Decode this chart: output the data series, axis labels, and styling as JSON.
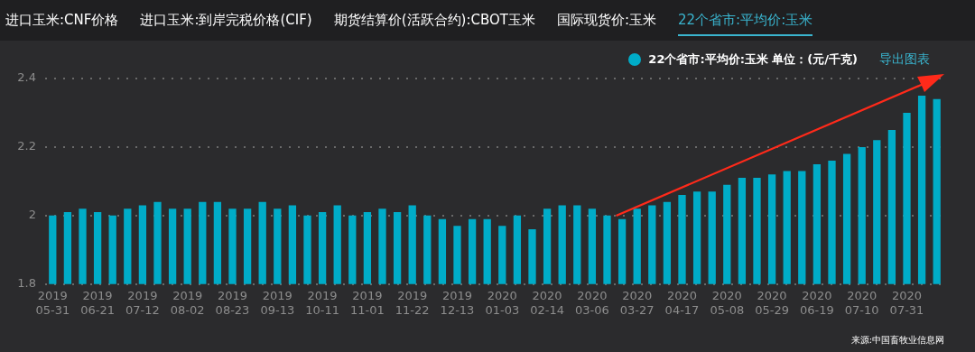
{
  "chart_data": {
    "type": "bar",
    "categories": [
      "2019 05-31",
      null,
      null,
      "2019 06-21",
      null,
      null,
      "2019 07-12",
      null,
      null,
      "2019 08-02",
      null,
      null,
      "2019 08-23",
      null,
      null,
      "2019 09-13",
      null,
      null,
      "2019 10-11",
      null,
      null,
      "2019 11-01",
      null,
      null,
      "2019 11-22",
      null,
      null,
      "2019 12-13",
      null,
      null,
      "2020 01-03",
      null,
      null,
      "2020 02-14",
      null,
      null,
      "2020 03-06",
      null,
      null,
      "2020 03-27",
      null,
      null,
      "2020 04-17",
      null,
      null,
      "2020 05-08",
      null,
      null,
      "2020 05-29",
      null,
      null,
      "2020 06-19",
      null,
      null,
      "2020 07-10",
      null,
      null,
      "2020 07-31",
      null,
      null
    ],
    "series": [
      {
        "name": "22个省市:平均价:玉米 单位：(元/千克)",
        "color": "#00acc8",
        "values": [
          2.0,
          2.01,
          2.02,
          2.01,
          2.0,
          2.02,
          2.03,
          2.04,
          2.02,
          2.02,
          2.04,
          2.04,
          2.02,
          2.02,
          2.04,
          2.02,
          2.03,
          2.0,
          2.01,
          2.03,
          2.0,
          2.01,
          2.02,
          2.01,
          2.03,
          2.0,
          1.99,
          1.97,
          1.99,
          1.99,
          1.97,
          2.0,
          1.96,
          2.02,
          2.03,
          2.03,
          2.02,
          2.0,
          1.99,
          2.02,
          2.03,
          2.04,
          2.06,
          2.07,
          2.07,
          2.09,
          2.11,
          2.11,
          2.12,
          2.13,
          2.13,
          2.15,
          2.16,
          2.18,
          2.2,
          2.22,
          2.25,
          2.3,
          2.35,
          2.34
        ]
      }
    ],
    "ylim": [
      1.8,
      2.4
    ],
    "yticks": [
      1.8,
      2,
      2.2,
      2.4
    ],
    "grid": "y",
    "legend": "top right",
    "annotations": [
      "进口玉米:CNF价格",
      "进口玉米:到岸完税价格(CIF)",
      "期货结算价(活跃合约):CBOT玉米",
      "国际现货价:玉米",
      "22个省市:平均价:玉米",
      "导出图表",
      "来源:中国畜牧业信息网"
    ]
  }
}
